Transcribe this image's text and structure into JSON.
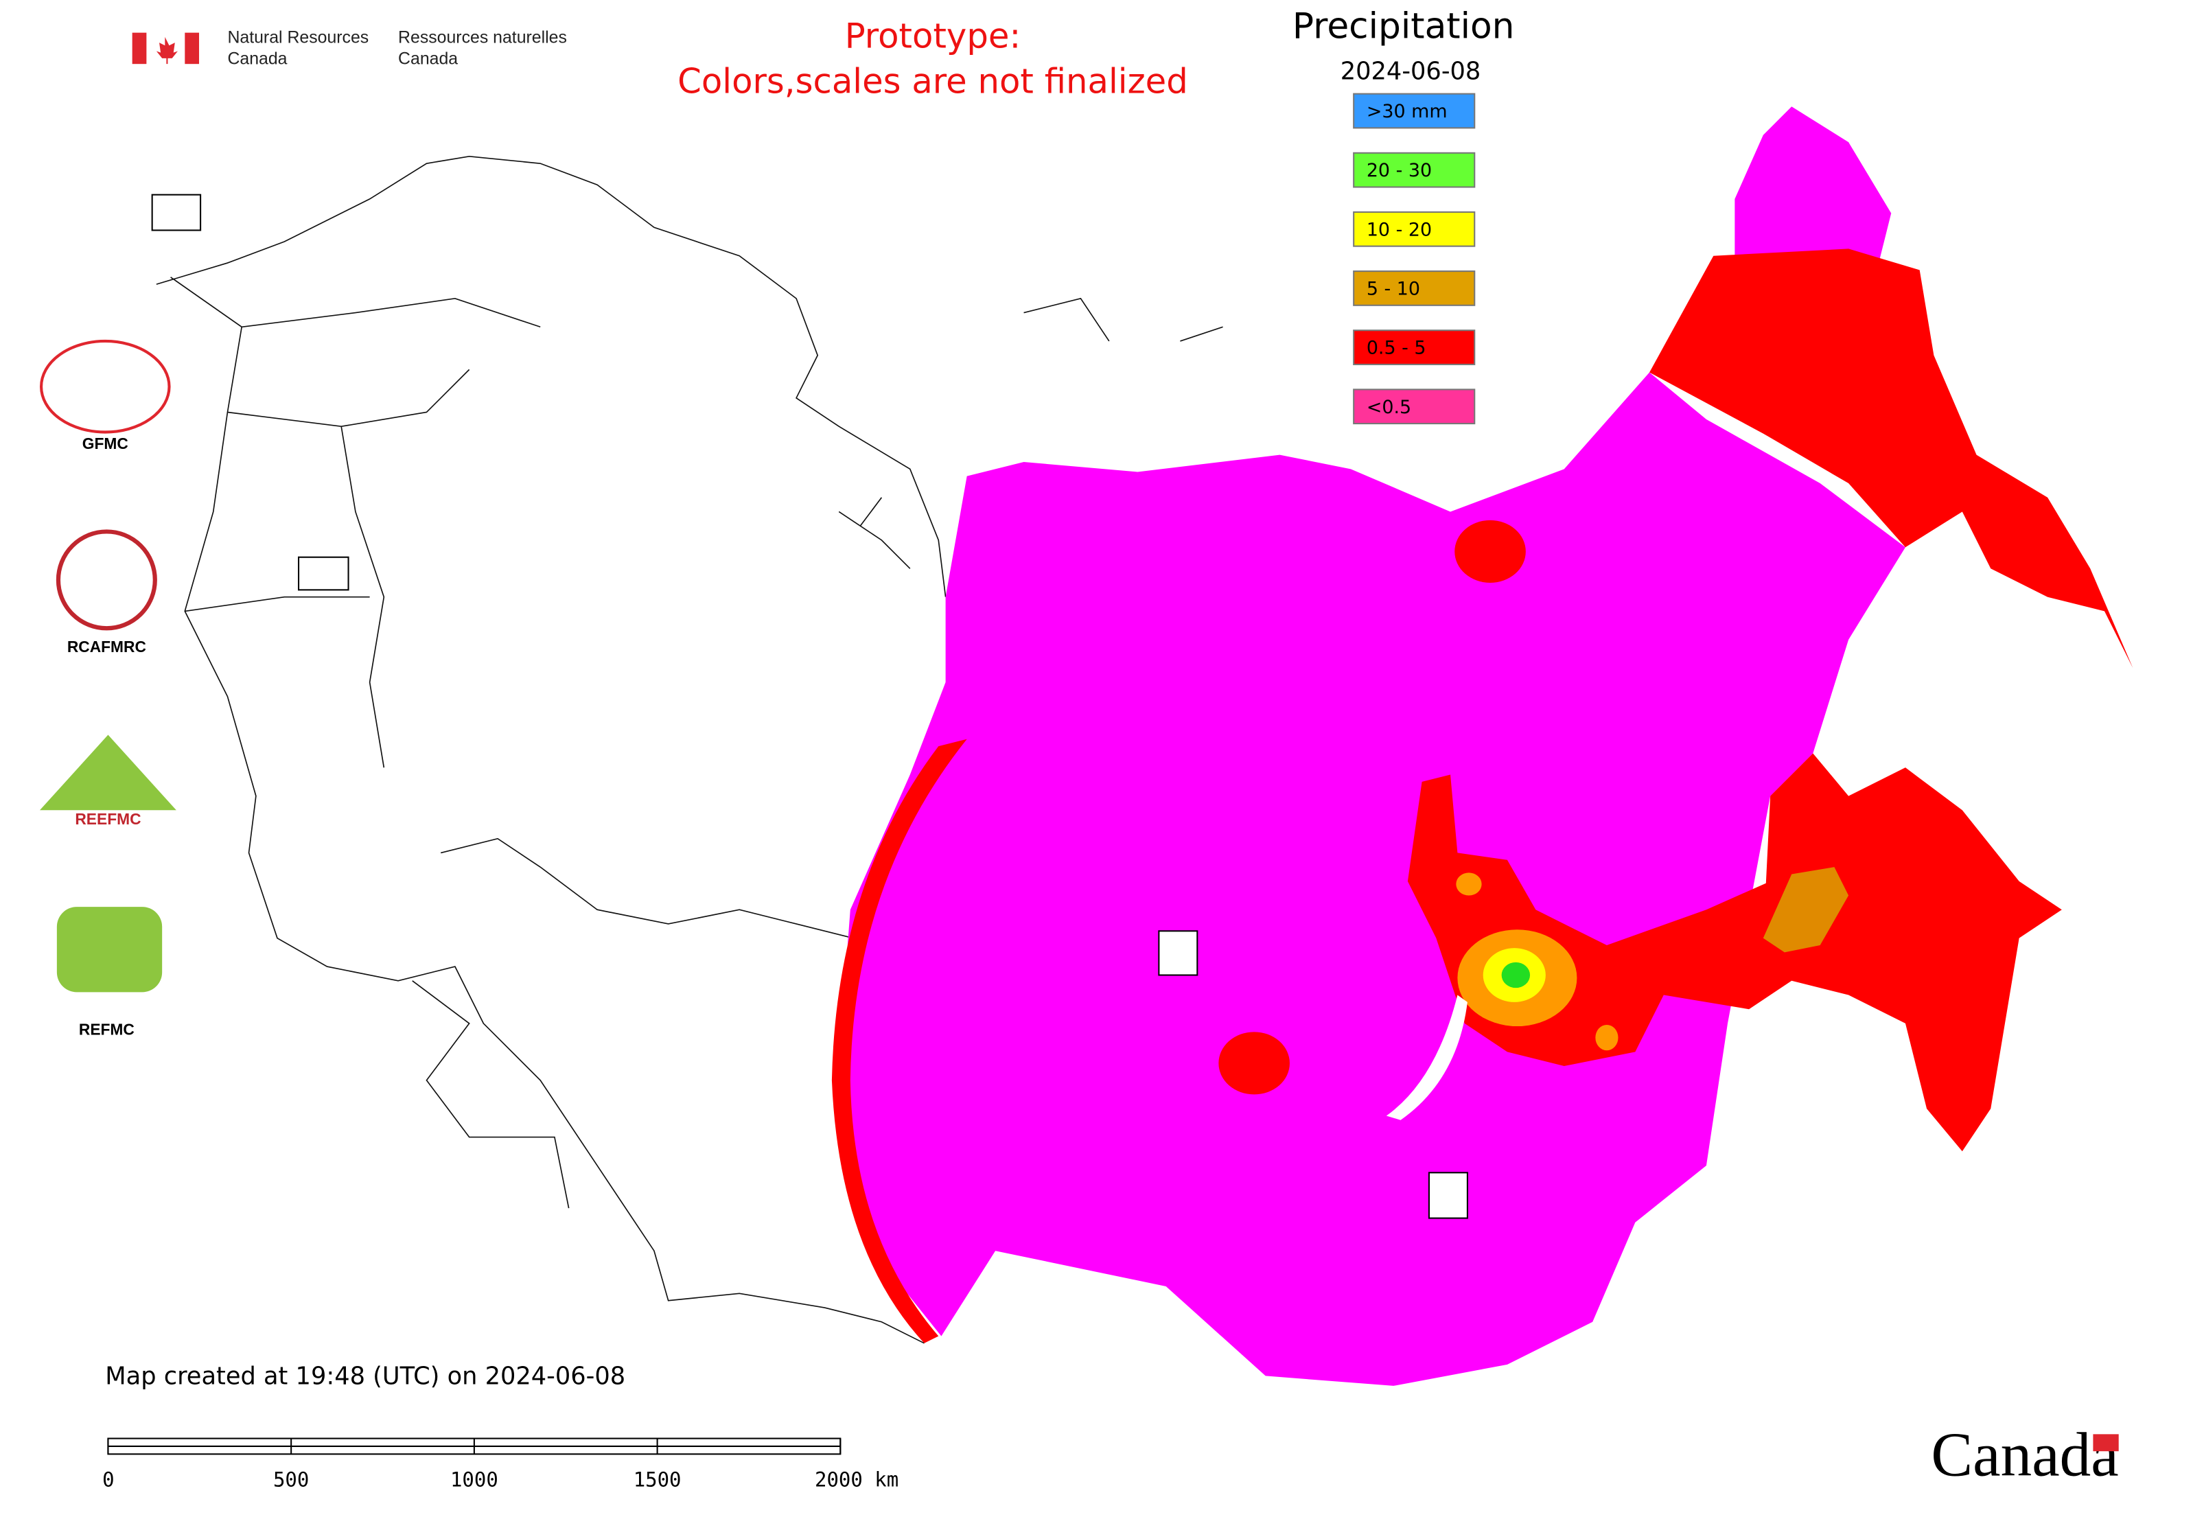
{
  "header": {
    "department_en": [
      "Natural Resources",
      "Canada"
    ],
    "department_fr": [
      "Ressources naturelles",
      "Canada"
    ],
    "notice": [
      "Prototype:",
      "Colors,scales are not finalized"
    ]
  },
  "legend": {
    "title": "Precipitation",
    "date": "2024-06-08",
    "items": [
      {
        "label": ">30 mm",
        "color": "#3399ff"
      },
      {
        "label": "20 - 30",
        "color": "#66ff33"
      },
      {
        "label": "10 - 20",
        "color": "#ffff00"
      },
      {
        "label": "5 - 10",
        "color": "#e0a000"
      },
      {
        "label": "0.5 - 5",
        "color": "#ff0000"
      },
      {
        "label": "<0.5",
        "color": "#ff3399"
      }
    ]
  },
  "logos": [
    "GFMC",
    "RCAFMRC",
    "REEFMC",
    "REFMC"
  ],
  "footer": {
    "created": "Map created at 19:48 (UTC) on 2024-06-08",
    "scale_labels": [
      "0",
      "500",
      "1000",
      "1500",
      "2000 km"
    ],
    "wordmark": "Canada"
  }
}
